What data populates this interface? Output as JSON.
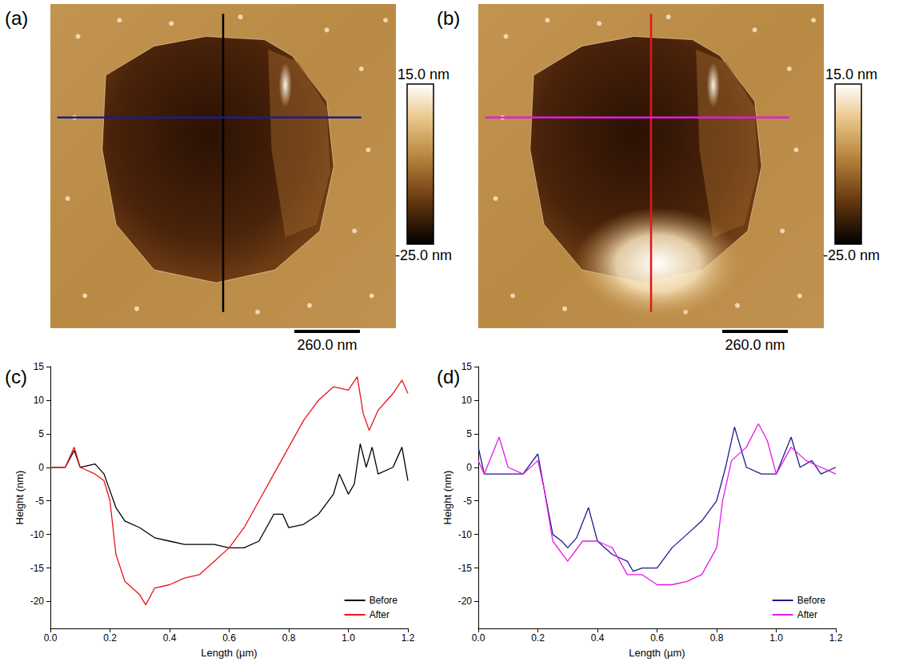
{
  "chart_data": [
    {
      "type": "image",
      "panel": "(a)",
      "colorbar": {
        "range": [
          -25,
          15
        ],
        "ticks": [
          {
            "value": 15,
            "label": "15.0 nm"
          },
          {
            "value": -25,
            "label": "-25.0 nm"
          }
        ]
      },
      "scale_bar": "260.0 nm",
      "lines": [
        {
          "direction": "vertical",
          "color": "#000000"
        },
        {
          "direction": "horizontal",
          "color": "#1c1c8f"
        }
      ]
    },
    {
      "type": "image",
      "panel": "(b)",
      "colorbar": {
        "range": [
          -25,
          15
        ],
        "ticks": [
          {
            "value": 15,
            "label": "15.0 nm"
          },
          {
            "value": -25,
            "label": "-25.0 nm"
          }
        ]
      },
      "scale_bar": "260.0 nm",
      "lines": [
        {
          "direction": "vertical",
          "color": "#e8141c"
        },
        {
          "direction": "horizontal",
          "color": "#e619e6"
        }
      ]
    },
    {
      "type": "line",
      "panel": "(c)",
      "x_label": "Length (µm)",
      "y_label": "Height (nm)",
      "xlim": [
        0,
        1.2
      ],
      "xticks": [
        {
          "value": 0,
          "label": "0.0"
        },
        {
          "value": 0.2,
          "label": "0.2"
        },
        {
          "value": 0.4,
          "label": "0.4"
        },
        {
          "value": 0.6,
          "label": "0.6"
        },
        {
          "value": 0.8,
          "label": "0.8"
        },
        {
          "value": 1.0,
          "label": "1.0"
        },
        {
          "value": 1.2,
          "label": "1.2"
        }
      ],
      "ylim": [
        -24,
        15
      ],
      "yticks": [
        -20,
        -15,
        -10,
        -5,
        0,
        5,
        10,
        15
      ],
      "grid": false,
      "legend": "lower right",
      "series": [
        {
          "name": "Before",
          "color": "#000000",
          "x": [
            0,
            0.05,
            0.08,
            0.1,
            0.15,
            0.18,
            0.2,
            0.22,
            0.25,
            0.3,
            0.35,
            0.4,
            0.45,
            0.5,
            0.55,
            0.6,
            0.65,
            0.7,
            0.75,
            0.78,
            0.8,
            0.85,
            0.9,
            0.95,
            0.97,
            1.0,
            1.02,
            1.04,
            1.06,
            1.08,
            1.1,
            1.15,
            1.18,
            1.2
          ],
          "values": [
            0,
            0,
            2.5,
            0,
            0.5,
            -1,
            -3.5,
            -6,
            -8,
            -9,
            -10.5,
            -11,
            -11.5,
            -11.5,
            -11.5,
            -12,
            -12,
            -11,
            -7,
            -7,
            -9,
            -8.5,
            -7,
            -4,
            -1,
            -4,
            -2.5,
            3.5,
            0,
            3,
            -1,
            0,
            3,
            -2
          ]
        },
        {
          "name": "After",
          "color": "#e8141c",
          "x": [
            0,
            0.05,
            0.08,
            0.1,
            0.15,
            0.18,
            0.2,
            0.22,
            0.25,
            0.3,
            0.32,
            0.35,
            0.4,
            0.45,
            0.5,
            0.55,
            0.6,
            0.65,
            0.7,
            0.75,
            0.8,
            0.85,
            0.9,
            0.95,
            1.0,
            1.03,
            1.05,
            1.07,
            1.1,
            1.15,
            1.18,
            1.2
          ],
          "values": [
            0,
            0,
            3,
            0,
            -1,
            -2,
            -5,
            -13,
            -17,
            -19,
            -20.5,
            -18,
            -17.5,
            -16.5,
            -16,
            -14,
            -12,
            -9,
            -5,
            -1,
            3,
            7,
            10,
            12,
            11.5,
            13.5,
            8,
            5.5,
            8.5,
            11,
            13,
            11
          ]
        }
      ]
    },
    {
      "type": "line",
      "panel": "(d)",
      "x_label": "Length (µm)",
      "y_label": "Height (nm)",
      "xlim": [
        0,
        1.2
      ],
      "xticks": [
        {
          "value": 0,
          "label": "0.0"
        },
        {
          "value": 0.2,
          "label": "0.2"
        },
        {
          "value": 0.4,
          "label": "0.4"
        },
        {
          "value": 0.6,
          "label": "0.6"
        },
        {
          "value": 0.8,
          "label": "0.8"
        },
        {
          "value": 1.0,
          "label": "1.0"
        },
        {
          "value": 1.2,
          "label": "1.2"
        }
      ],
      "ylim": [
        -24,
        15
      ],
      "yticks": [
        -20,
        -15,
        -10,
        -5,
        0,
        5,
        10,
        15
      ],
      "grid": false,
      "legend": "lower right",
      "series": [
        {
          "name": "Before",
          "color": "#1c1c8f",
          "x": [
            0,
            0.02,
            0.05,
            0.1,
            0.15,
            0.2,
            0.22,
            0.25,
            0.28,
            0.3,
            0.33,
            0.37,
            0.4,
            0.45,
            0.5,
            0.52,
            0.55,
            0.6,
            0.65,
            0.7,
            0.75,
            0.8,
            0.83,
            0.86,
            0.88,
            0.9,
            0.95,
            1.0,
            1.05,
            1.08,
            1.12,
            1.15,
            1.2
          ],
          "values": [
            3,
            -1,
            -1,
            -1,
            -1,
            2,
            -3,
            -10,
            -11,
            -12,
            -10.5,
            -6,
            -11,
            -13,
            -14,
            -15.5,
            -15,
            -15,
            -12,
            -10,
            -8,
            -5,
            0,
            6,
            3,
            0,
            -1,
            -1,
            4.5,
            0,
            1,
            -1,
            0
          ]
        },
        {
          "name": "After",
          "color": "#e619e6",
          "x": [
            0,
            0.02,
            0.07,
            0.1,
            0.15,
            0.2,
            0.22,
            0.25,
            0.3,
            0.35,
            0.4,
            0.45,
            0.5,
            0.55,
            0.6,
            0.65,
            0.7,
            0.75,
            0.8,
            0.82,
            0.85,
            0.9,
            0.94,
            0.97,
            1.0,
            1.05,
            1.1,
            1.15,
            1.2
          ],
          "values": [
            1,
            -1,
            4.5,
            0,
            -1,
            1,
            -3,
            -11,
            -14,
            -11,
            -11,
            -12,
            -16,
            -16,
            -17.5,
            -17.5,
            -17,
            -16,
            -12,
            -5,
            1,
            3,
            6.5,
            4,
            -1,
            3,
            1,
            0,
            -1
          ]
        }
      ]
    }
  ]
}
